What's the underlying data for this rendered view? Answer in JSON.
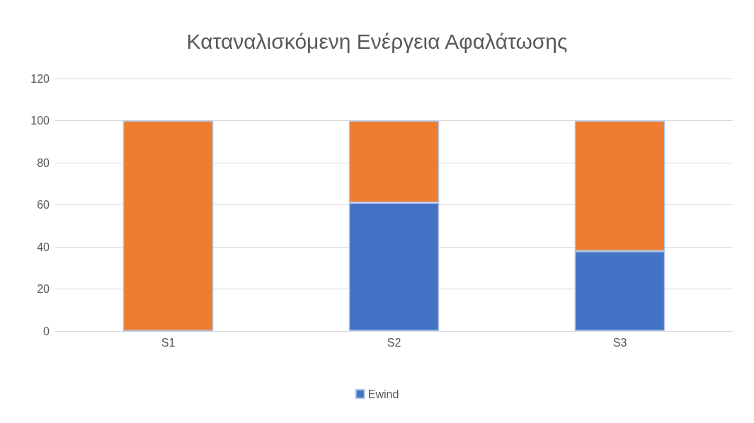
{
  "chart_data": {
    "type": "bar",
    "title": "Καταναλισκόμενη Ενέργεια Αφαλάτωσης",
    "categories": [
      "S1",
      "S2",
      "S3"
    ],
    "stacked": true,
    "ylim": [
      0,
      120
    ],
    "yticks": [
      0,
      20,
      40,
      60,
      80,
      100,
      120
    ],
    "grid": "y",
    "legend": "bottom",
    "series": [
      {
        "name": "Ewind",
        "color": "#4472c4",
        "values": [
          0,
          61,
          38
        ]
      },
      {
        "color": "#ed7d31",
        "values": [
          100,
          39,
          62
        ]
      }
    ]
  }
}
